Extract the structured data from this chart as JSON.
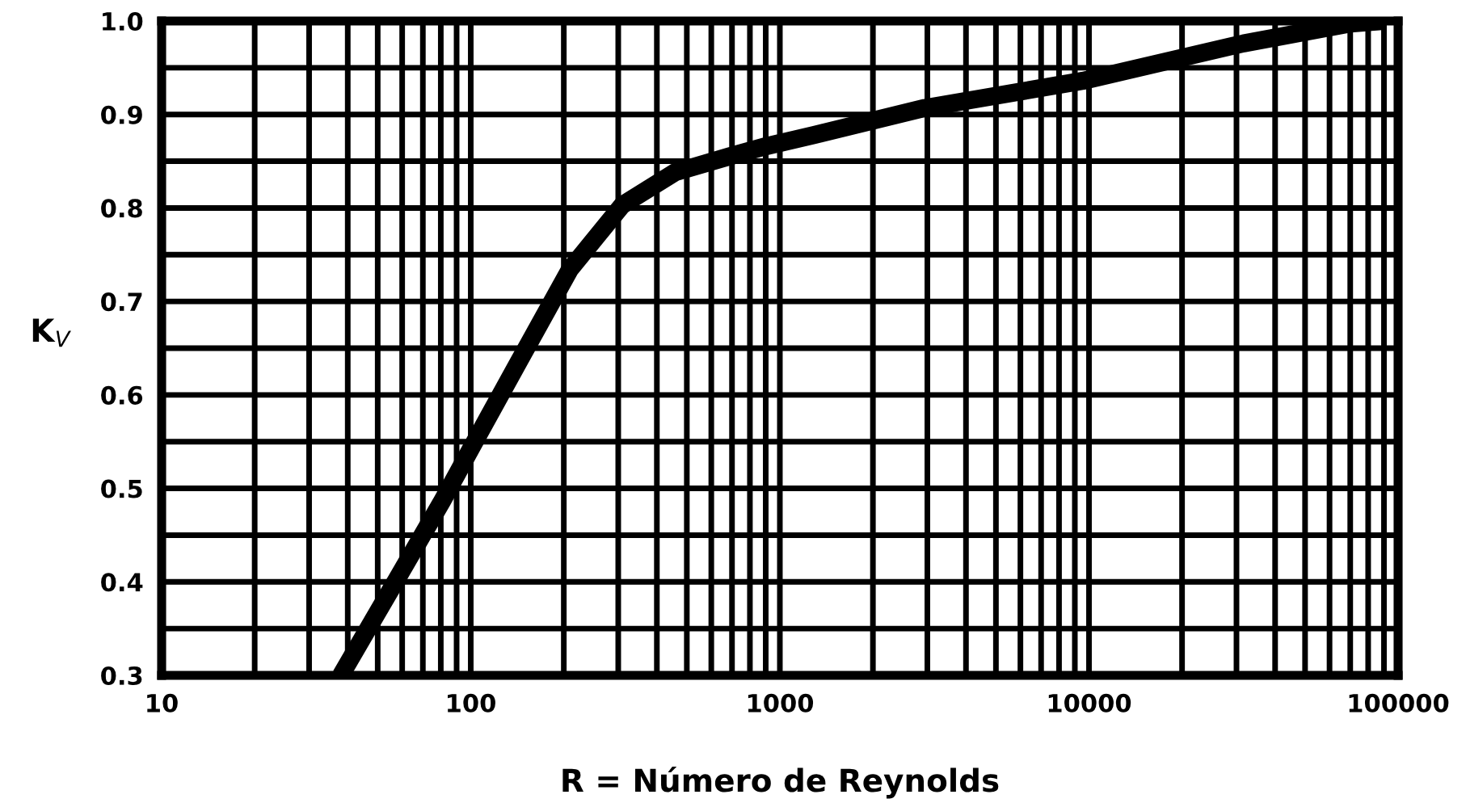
{
  "chart_data": {
    "type": "line",
    "xlabel": "R = Número de Reynolds",
    "ylabel": "K$_{V}$",
    "x": [
      38,
      57,
      81,
      103,
      140,
      209,
      309,
      457,
      684,
      900,
      1290,
      2940,
      9550,
      31600,
      69000,
      90000
    ],
    "series": [
      {
        "color": "#000000",
        "values": [
          0.3,
          0.4,
          0.487,
          0.55,
          0.63,
          0.734,
          0.803,
          0.838,
          0.855,
          0.866,
          0.878,
          0.907,
          0.936,
          0.976,
          0.997,
          1.0
        ]
      }
    ],
    "log": "x",
    "xlim": [
      10,
      100000
    ],
    "ylim": [
      0.3,
      1.0
    ],
    "xticks": [
      10,
      {
        "value": 20,
        "label": null
      },
      {
        "value": 30,
        "label": null
      },
      {
        "value": 40,
        "label": null
      },
      {
        "value": 50,
        "label": null
      },
      {
        "value": 60,
        "label": null
      },
      {
        "value": 70,
        "label": null
      },
      {
        "value": 80,
        "label": null
      },
      {
        "value": 90,
        "label": null
      },
      100,
      {
        "value": 200,
        "label": null
      },
      {
        "value": 300,
        "label": null
      },
      {
        "value": 400,
        "label": null
      },
      {
        "value": 500,
        "label": null
      },
      {
        "value": 600,
        "label": null
      },
      {
        "value": 700,
        "label": null
      },
      {
        "value": 800,
        "label": null
      },
      {
        "value": 900,
        "label": null
      },
      1000,
      {
        "value": 2000,
        "label": null
      },
      {
        "value": 3000,
        "label": null
      },
      {
        "value": 4000,
        "label": null
      },
      {
        "value": 5000,
        "label": null
      },
      {
        "value": 6000,
        "label": null
      },
      {
        "value": 7000,
        "label": null
      },
      {
        "value": 8000,
        "label": null
      },
      {
        "value": 9000,
        "label": null
      },
      10000,
      {
        "value": 20000,
        "label": null
      },
      {
        "value": 30000,
        "label": null
      },
      {
        "value": 40000,
        "label": null
      },
      {
        "value": 50000,
        "label": null
      },
      {
        "value": 60000,
        "label": null
      },
      {
        "value": 70000,
        "label": null
      },
      {
        "value": 80000,
        "label": null
      },
      {
        "value": 90000,
        "label": null
      },
      100000
    ],
    "yticks": [
      {
        "value": 0.3,
        "label": "0.3"
      },
      {
        "value": 0.35,
        "label": null
      },
      {
        "value": 0.4,
        "label": "0.4"
      },
      {
        "value": 0.45,
        "label": null
      },
      {
        "value": 0.5,
        "label": "0.5"
      },
      {
        "value": 0.55,
        "label": null
      },
      {
        "value": 0.6,
        "label": "0.6"
      },
      {
        "value": 0.65,
        "label": null
      },
      {
        "value": 0.7,
        "label": "0.7"
      },
      {
        "value": 0.75,
        "label": null
      },
      {
        "value": 0.8,
        "label": "0.8"
      },
      {
        "value": 0.85,
        "label": null
      },
      {
        "value": 0.9,
        "label": "0.9"
      },
      {
        "value": 0.95,
        "label": null
      },
      {
        "value": 1.0,
        "label": "1.0"
      }
    ],
    "grid": true,
    "line_style": "solid"
  }
}
